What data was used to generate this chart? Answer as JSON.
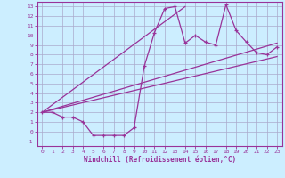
{
  "xlabel": "Windchill (Refroidissement éolien,°C)",
  "background_color": "#cceeff",
  "grid_color": "#aaaacc",
  "line_color": "#993399",
  "xlim": [
    -0.5,
    23.5
  ],
  "ylim": [
    -1.5,
    13.5
  ],
  "xticks": [
    0,
    1,
    2,
    3,
    4,
    5,
    6,
    7,
    8,
    9,
    10,
    11,
    12,
    13,
    14,
    15,
    16,
    17,
    18,
    19,
    20,
    21,
    22,
    23
  ],
  "yticks": [
    -1,
    0,
    1,
    2,
    3,
    4,
    5,
    6,
    7,
    8,
    9,
    10,
    11,
    12,
    13
  ],
  "series1_x": [
    0,
    1,
    2,
    3,
    4,
    5,
    6,
    7,
    8,
    9,
    10,
    11,
    12,
    13,
    14,
    15,
    16,
    17,
    18,
    19,
    20,
    21,
    22,
    23
  ],
  "series1_y": [
    2.0,
    2.0,
    1.5,
    1.5,
    1.0,
    -0.4,
    -0.4,
    -0.4,
    -0.4,
    0.4,
    6.8,
    10.3,
    12.8,
    13.0,
    9.2,
    10.0,
    9.3,
    9.0,
    13.2,
    10.5,
    9.3,
    8.2,
    8.0,
    8.8
  ],
  "series2_x": [
    0,
    23
  ],
  "series2_y": [
    2.0,
    9.2
  ],
  "series3_x": [
    0,
    14
  ],
  "series3_y": [
    2.0,
    13.0
  ],
  "series4_x": [
    0,
    23
  ],
  "series4_y": [
    2.0,
    7.8
  ]
}
